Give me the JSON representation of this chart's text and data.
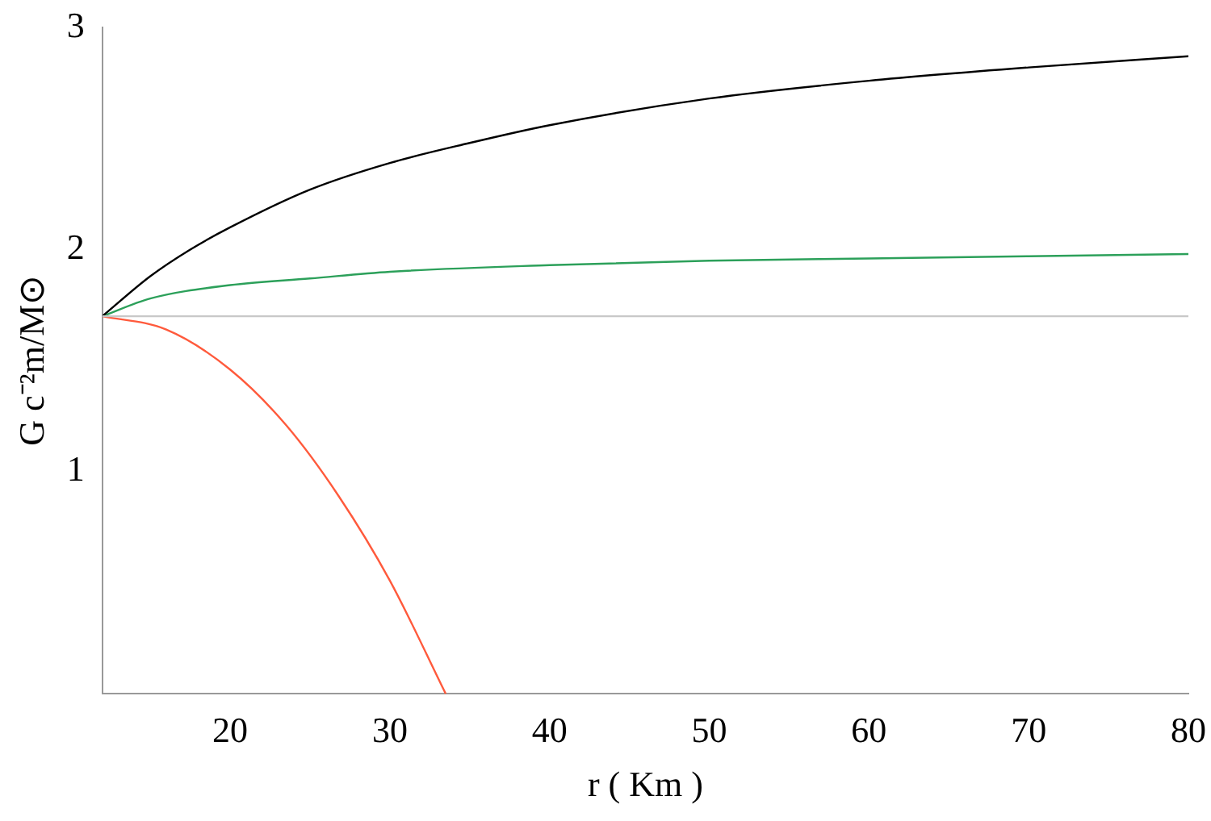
{
  "chart_data": {
    "type": "line",
    "xlabel": "r ( Km )",
    "ylabel": "G c⁻²m/M⊙",
    "xlim": [
      12,
      80
    ],
    "ylim": [
      0,
      3
    ],
    "xticks": [
      20,
      30,
      40,
      50,
      60,
      70,
      80
    ],
    "yticks": [
      1,
      2,
      3
    ],
    "grid": false,
    "legend": false,
    "marker": "none",
    "series": [
      {
        "color": "#c8c8c8",
        "x": [
          12,
          80
        ],
        "values": [
          1.7,
          1.7
        ]
      },
      {
        "color": "#000000",
        "x": [
          12,
          15,
          17.5,
          20,
          25,
          30,
          35,
          40,
          50,
          60,
          70,
          80
        ],
        "values": [
          1.7,
          1.88,
          2.0,
          2.1,
          2.27,
          2.39,
          2.48,
          2.56,
          2.68,
          2.76,
          2.82,
          2.87
        ]
      },
      {
        "color": "#2ca05a",
        "x": [
          12,
          15,
          20,
          25,
          30,
          40,
          50,
          60,
          70,
          80
        ],
        "values": [
          1.7,
          1.78,
          1.84,
          1.87,
          1.9,
          1.93,
          1.95,
          1.96,
          1.97,
          1.98
        ]
      },
      {
        "color": "#ff5a3c",
        "x": [
          12,
          16,
          20,
          23.5,
          26.8,
          30,
          33.5
        ],
        "values": [
          1.7,
          1.64,
          1.46,
          1.21,
          0.89,
          0.51,
          0
        ]
      }
    ]
  }
}
